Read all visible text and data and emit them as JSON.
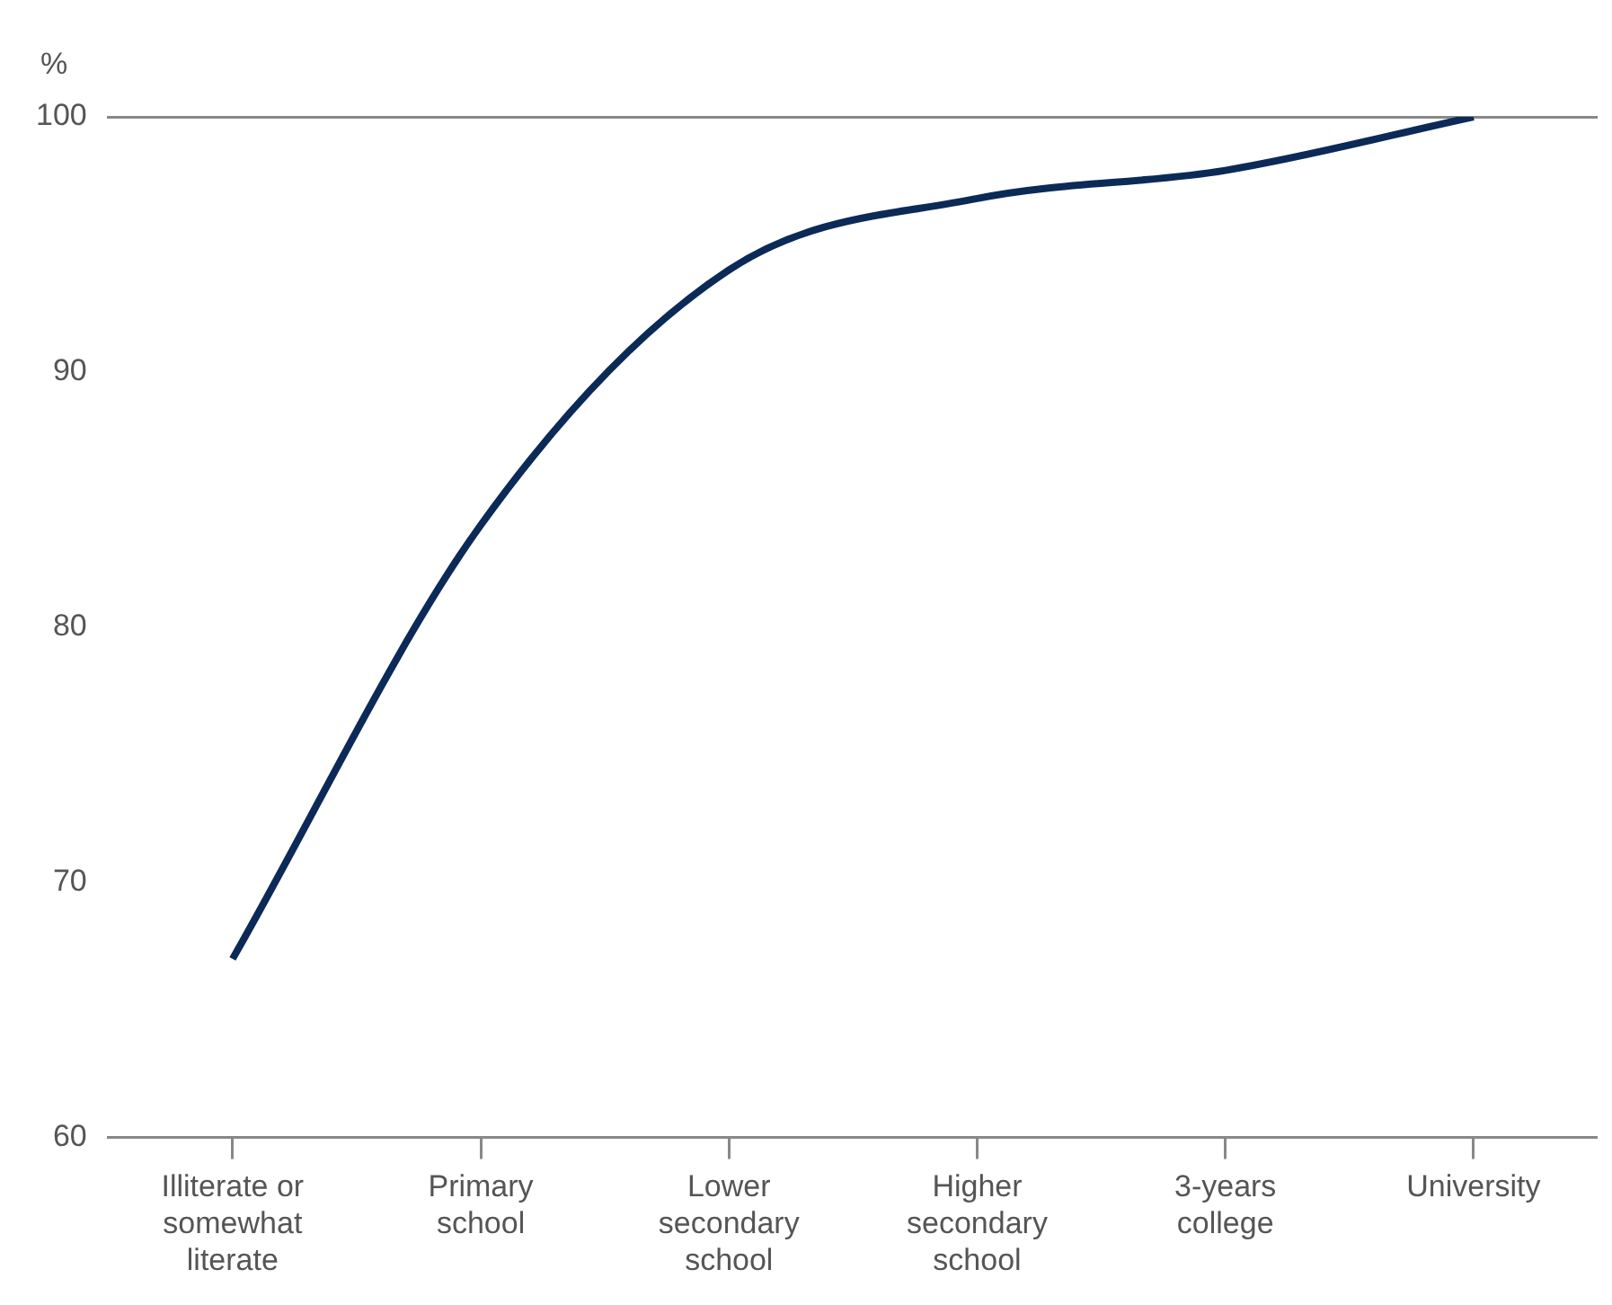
{
  "chart_data": {
    "type": "line",
    "ylabel": "%",
    "categories": [
      "Illiterate or somewhat literate",
      "Primary school",
      "Lower secondary school",
      "Higher secondary school",
      "3-years college",
      "University"
    ],
    "series": [
      {
        "color": "#0c2a57",
        "values": [
          67,
          84,
          94,
          96.8,
          97.9,
          100
        ]
      }
    ],
    "ylim": [
      60,
      100
    ],
    "yticks": [
      60,
      70,
      80,
      90,
      100
    ],
    "grid": false,
    "legend": false,
    "marker": "none",
    "line_style": "solid"
  }
}
